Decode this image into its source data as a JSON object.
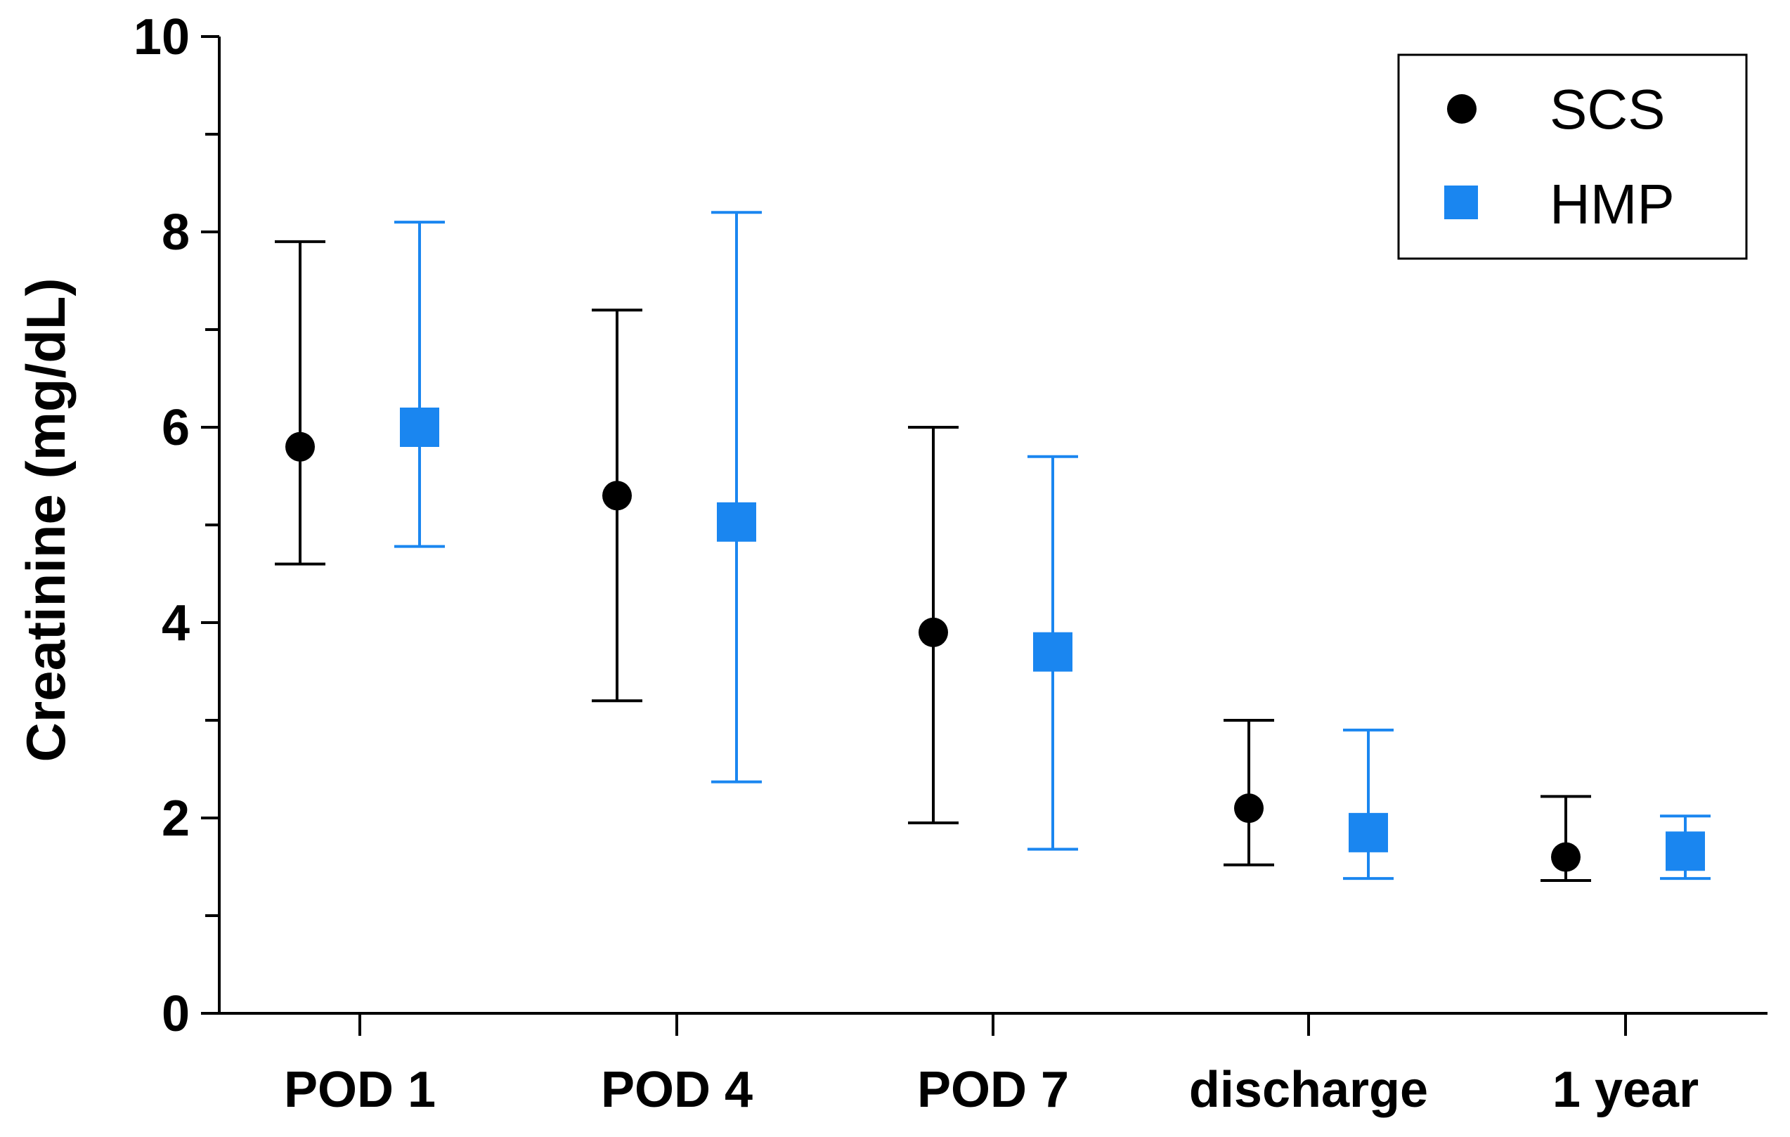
{
  "chart_data": {
    "type": "scatter",
    "title": "",
    "xlabel": "",
    "ylabel": "Creatinine (mg/dL)",
    "ylim": [
      0,
      10
    ],
    "y_ticks": [
      0,
      2,
      4,
      6,
      8,
      10
    ],
    "y_ticks_labeled": [
      "0",
      "2",
      "4",
      "6",
      "8",
      "10"
    ],
    "grid": false,
    "legend_position": "top-right",
    "categories": [
      "POD 1",
      "POD 4",
      "POD 7",
      "discharge",
      "1 year"
    ],
    "series": [
      {
        "name": "SCS",
        "marker": "circle",
        "color": "#000000",
        "values": [
          5.8,
          5.3,
          3.9,
          2.1,
          1.6
        ],
        "error_low": [
          4.6,
          3.2,
          1.95,
          1.52,
          1.36
        ],
        "error_high": [
          7.9,
          7.2,
          6.0,
          3.0,
          2.22
        ]
      },
      {
        "name": "HMP",
        "marker": "square",
        "color": "#1a86f0",
        "values": [
          6.0,
          5.03,
          3.7,
          1.85,
          1.66
        ],
        "error_low": [
          4.78,
          2.37,
          1.68,
          1.38,
          1.38
        ],
        "error_high": [
          8.1,
          8.2,
          5.7,
          2.9,
          2.02
        ]
      }
    ]
  }
}
